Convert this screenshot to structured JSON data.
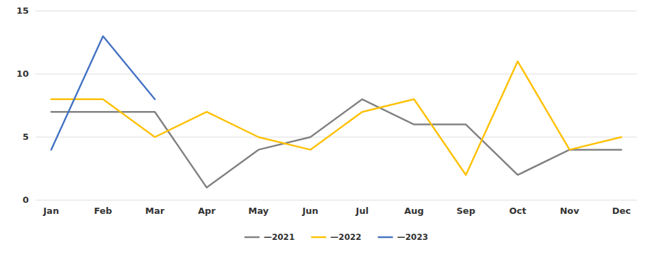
{
  "chart_data": {
    "type": "line",
    "categories": [
      "Jan",
      "Feb",
      "Mar",
      "Apr",
      "May",
      "Jun",
      "Jul",
      "Aug",
      "Sep",
      "Oct",
      "Nov",
      "Dec"
    ],
    "series": [
      {
        "name": "—2021",
        "color": "#808080",
        "values": [
          7,
          7,
          7,
          1,
          4,
          5,
          8,
          6,
          6,
          2,
          4,
          4
        ]
      },
      {
        "name": "—2022",
        "color": "#FFC000",
        "values": [
          8,
          8,
          5,
          7,
          5,
          4,
          7,
          8,
          2,
          11,
          4,
          5
        ]
      },
      {
        "name": "—2023",
        "color": "#4472C4",
        "values": [
          4,
          13,
          8,
          null,
          null,
          null,
          null,
          null,
          null,
          null,
          null,
          null
        ]
      }
    ],
    "ylim": [
      0,
      15
    ],
    "yticks": [
      0,
      5,
      10,
      15
    ],
    "grid": true,
    "legend": "bottom"
  }
}
